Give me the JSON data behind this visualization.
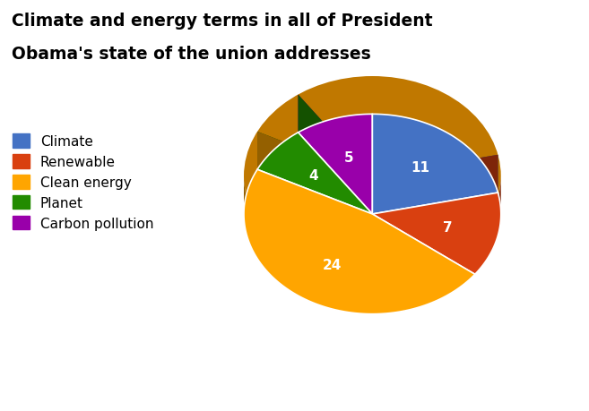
{
  "title_line1": "Climate and energy terms in all of President",
  "title_line2": "Obama's state of the union addresses",
  "labels": [
    "Climate",
    "Renewable",
    "Clean energy",
    "Planet",
    "Carbon pollution"
  ],
  "values": [
    11,
    7,
    24,
    4,
    5
  ],
  "colors": [
    "#4472C4",
    "#D94010",
    "#FFA500",
    "#228B00",
    "#9900AA"
  ],
  "startangle": 90,
  "background_color": "#FFFFFF",
  "title_fontsize": 13.5,
  "title_fontweight": "bold",
  "label_fontsize": 11,
  "legend_fontsize": 11
}
